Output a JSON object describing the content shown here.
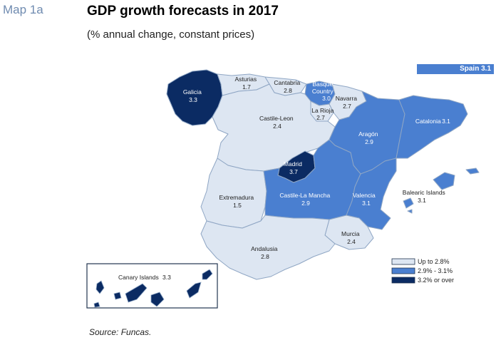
{
  "header": {
    "map_label": "Map 1a",
    "title": "GDP growth forecasts in 2017",
    "subtitle": "(% annual change, constant prices)"
  },
  "spain_badge": "Spain 3.1",
  "colors": {
    "low": "#dde6f2",
    "mid": "#4a7fd0",
    "high": "#0b2b63",
    "border": "#8fa6c4"
  },
  "regions": [
    {
      "name": "Galicia",
      "value": "3.3",
      "category": "high"
    },
    {
      "name": "Asturias",
      "value": "1.7",
      "category": "low"
    },
    {
      "name": "Cantabria",
      "value": "2.8",
      "category": "low"
    },
    {
      "name": "Basque Country",
      "value": "3.0",
      "category": "mid"
    },
    {
      "name": "Navarra",
      "value": "2.7",
      "category": "low"
    },
    {
      "name": "La Rioja",
      "value": "2.7",
      "category": "low"
    },
    {
      "name": "Castile-Leon",
      "value": "2.4",
      "category": "low"
    },
    {
      "name": "Aragón",
      "value": "2.9",
      "category": "mid"
    },
    {
      "name": "Catalonia",
      "value": "3.1",
      "category": "mid"
    },
    {
      "name": "Madrid",
      "value": "3.7",
      "category": "high"
    },
    {
      "name": "Extremadura",
      "value": "1.5",
      "category": "low"
    },
    {
      "name": "Castile-La Mancha",
      "value": "2.9",
      "category": "mid"
    },
    {
      "name": "Valencia",
      "value": "3.1",
      "category": "mid"
    },
    {
      "name": "Balearic Islands",
      "value": "3.1",
      "category": "mid"
    },
    {
      "name": "Murcia",
      "value": "2.4",
      "category": "low"
    },
    {
      "name": "Andalusia",
      "value": "2.8",
      "category": "low"
    },
    {
      "name": "Canary Islands",
      "value": "3.3",
      "category": "high"
    }
  ],
  "legend": [
    {
      "label": "Up to 2.8%",
      "category": "low"
    },
    {
      "label": "2.9% - 3.1%",
      "category": "mid"
    },
    {
      "label": "3.2% or over",
      "category": "high"
    }
  ],
  "source": "Source: Funcas."
}
